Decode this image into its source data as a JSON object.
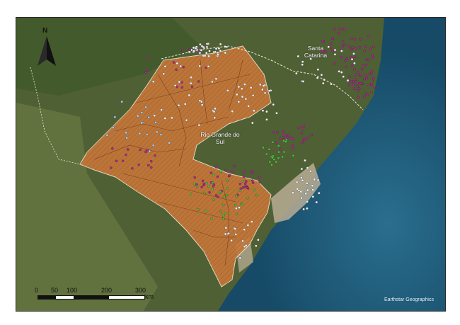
{
  "map": {
    "labels": {
      "state_south": "Rio Grande do Sul",
      "state_north": "Santa Catarina"
    },
    "north_arrow": {
      "letter": "N",
      "icon": "north-arrow-icon"
    },
    "scale_bar": {
      "ticks": [
        "0",
        "50",
        "100",
        "200",
        "300"
      ],
      "unit": "km"
    },
    "credit": "Earthstar Geographics",
    "colors": {
      "region_fill": "#c8783a",
      "ocean": "#1e5878",
      "land": "#4d5e33",
      "point_magenta": "#b0288c",
      "point_green": "#4cc23c",
      "point_white": "#f2f2f2",
      "point_lightblue": "#a8d0ee"
    }
  }
}
